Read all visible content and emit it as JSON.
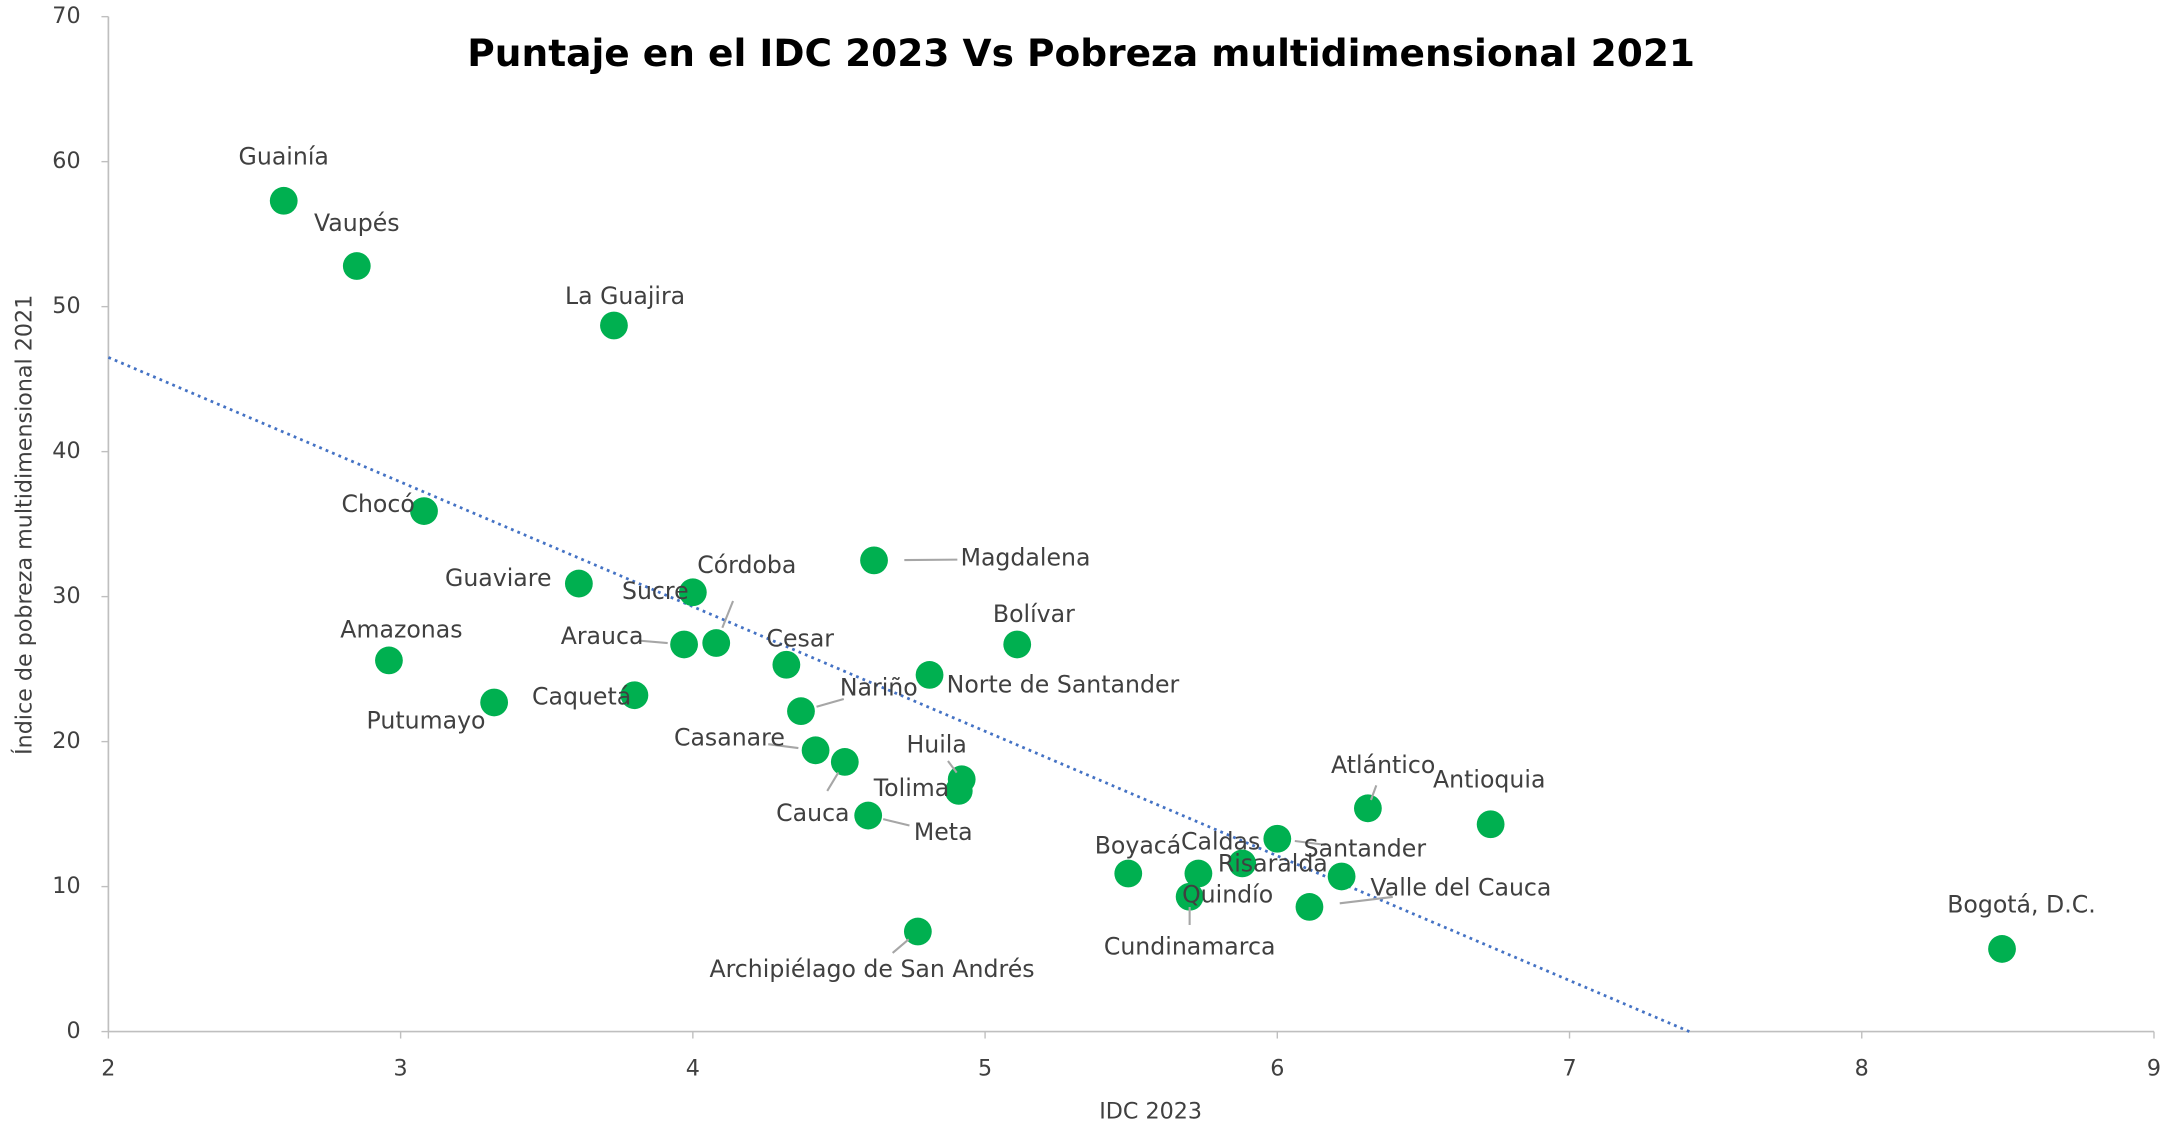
{
  "chart_data": {
    "type": "scatter",
    "title": "Puntaje en el IDC 2023 Vs Pobreza multidimensional 2021",
    "x_label": "IDC 2023",
    "y_label": "Índice de pobreza multidimensional 2021",
    "xlim": [
      2,
      9
    ],
    "ylim": [
      0,
      70
    ],
    "xticks": [
      2,
      3,
      4,
      5,
      6,
      7,
      8,
      9
    ],
    "yticks": [
      0,
      10,
      20,
      30,
      40,
      50,
      60,
      70
    ],
    "grid": false,
    "series": [
      {
        "color": "#00b050",
        "labels": [
          "Guainía",
          "Vaupés",
          "La Guajira",
          "Chocó",
          "Guaviare",
          "Sucre",
          "Córdoba",
          "Arauca",
          "Amazonas",
          "Magdalena",
          "Bolívar",
          "Cesar",
          "Norte de Santander",
          "Caquetá",
          "Putumayo",
          "Nariño",
          "Casanare",
          "Cauca",
          "Huila",
          "Tolima",
          "Meta",
          "Archipiélago de San Andrés",
          "Boyacá",
          "Caldas",
          "Cundinamarca",
          "Risaralda",
          "Santander",
          "Quindío",
          "Valle del Cauca",
          "Atlántico",
          "Antioquia",
          "Bogotá, D.C."
        ],
        "x": [
          2.6,
          2.85,
          3.73,
          3.08,
          3.61,
          4.0,
          4.08,
          3.97,
          2.96,
          4.62,
          5.11,
          4.32,
          4.81,
          3.8,
          3.32,
          4.37,
          4.42,
          4.52,
          4.92,
          4.91,
          4.6,
          4.77,
          5.49,
          5.73,
          5.7,
          5.88,
          6.0,
          6.22,
          6.11,
          6.31,
          6.73,
          8.48
        ],
        "values": [
          57.3,
          52.8,
          48.7,
          35.9,
          30.9,
          30.3,
          26.8,
          26.7,
          25.6,
          32.5,
          26.7,
          25.3,
          24.6,
          23.2,
          22.7,
          22.1,
          19.4,
          18.6,
          17.4,
          16.6,
          14.9,
          6.9,
          10.9,
          10.9,
          9.3,
          11.6,
          13.3,
          10.7,
          8.6,
          15.4,
          14.3,
          5.7
        ]
      }
    ],
    "trendline": {
      "color": "#4472c4",
      "x": [
        2,
        7.41
      ],
      "y": [
        46.5,
        0
      ]
    }
  }
}
